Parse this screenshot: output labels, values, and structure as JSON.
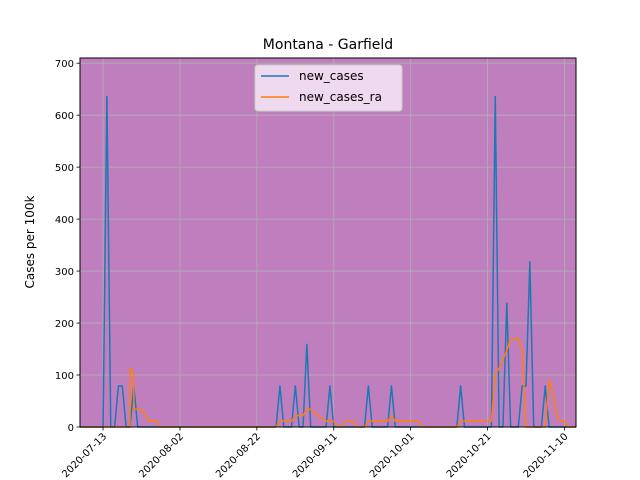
{
  "chart_data": {
    "type": "line",
    "title": "Montana - Garfield",
    "xlabel": "",
    "ylabel": "Cases per 100k",
    "ylim": [
      0,
      710
    ],
    "xlim": [
      "2020-07-07",
      "2020-11-13"
    ],
    "grid": true,
    "legend_position": "top-center",
    "background_color": "#bf7fbf",
    "x_ticks": [
      "2020-07-13",
      "2020-08-02",
      "2020-08-22",
      "2020-09-11",
      "2020-10-01",
      "2020-10-21",
      "2020-11-10"
    ],
    "y_ticks": [
      0,
      100,
      200,
      300,
      400,
      500,
      600,
      700
    ],
    "series": [
      {
        "name": "new_cases",
        "color": "#1f77b4",
        "points": [
          [
            "2020-07-07",
            0
          ],
          [
            "2020-07-13",
            0
          ],
          [
            "2020-07-14",
            636
          ],
          [
            "2020-07-15",
            0
          ],
          [
            "2020-07-16",
            0
          ],
          [
            "2020-07-17",
            79
          ],
          [
            "2020-07-18",
            79
          ],
          [
            "2020-07-19",
            0
          ],
          [
            "2020-07-20",
            0
          ],
          [
            "2020-07-21",
            79
          ],
          [
            "2020-07-22",
            0
          ],
          [
            "2020-08-27",
            0
          ],
          [
            "2020-08-28",
            79
          ],
          [
            "2020-08-29",
            0
          ],
          [
            "2020-08-31",
            0
          ],
          [
            "2020-09-01",
            79
          ],
          [
            "2020-09-02",
            0
          ],
          [
            "2020-09-03",
            0
          ],
          [
            "2020-09-04",
            159
          ],
          [
            "2020-09-05",
            0
          ],
          [
            "2020-09-09",
            0
          ],
          [
            "2020-09-10",
            79
          ],
          [
            "2020-09-11",
            0
          ],
          [
            "2020-09-19",
            0
          ],
          [
            "2020-09-20",
            79
          ],
          [
            "2020-09-21",
            0
          ],
          [
            "2020-09-25",
            0
          ],
          [
            "2020-09-26",
            79
          ],
          [
            "2020-09-27",
            0
          ],
          [
            "2020-10-13",
            0
          ],
          [
            "2020-10-14",
            79
          ],
          [
            "2020-10-15",
            0
          ],
          [
            "2020-10-22",
            0
          ],
          [
            "2020-10-23",
            636
          ],
          [
            "2020-10-24",
            0
          ],
          [
            "2020-10-25",
            0
          ],
          [
            "2020-10-26",
            238
          ],
          [
            "2020-10-27",
            0
          ],
          [
            "2020-10-29",
            0
          ],
          [
            "2020-10-30",
            79
          ],
          [
            "2020-10-31",
            79
          ],
          [
            "2020-11-01",
            318
          ],
          [
            "2020-11-02",
            0
          ],
          [
            "2020-11-04",
            0
          ],
          [
            "2020-11-05",
            79
          ],
          [
            "2020-11-06",
            0
          ],
          [
            "2020-11-13",
            0
          ]
        ]
      },
      {
        "name": "new_cases_ra",
        "color": "#ff7f0e",
        "points": [
          [
            "2020-07-07",
            0
          ],
          [
            "2020-07-20",
            0
          ],
          [
            "2020-07-20",
            113
          ],
          [
            "2020-07-21",
            102
          ],
          [
            "2020-07-21",
            34
          ],
          [
            "2020-07-23",
            34
          ],
          [
            "2020-07-24",
            22
          ],
          [
            "2020-07-25",
            11
          ],
          [
            "2020-07-27",
            11
          ],
          [
            "2020-07-28",
            0
          ],
          [
            "2020-08-27",
            0
          ],
          [
            "2020-08-28",
            11
          ],
          [
            "2020-08-31",
            11
          ],
          [
            "2020-09-01",
            22
          ],
          [
            "2020-09-03",
            22
          ],
          [
            "2020-09-04",
            34
          ],
          [
            "2020-09-05",
            34
          ],
          [
            "2020-09-07",
            22
          ],
          [
            "2020-09-09",
            11
          ],
          [
            "2020-09-11",
            11
          ],
          [
            "2020-09-12",
            0
          ],
          [
            "2020-09-13",
            0
          ],
          [
            "2020-09-14",
            11
          ],
          [
            "2020-09-16",
            11
          ],
          [
            "2020-09-17",
            0
          ],
          [
            "2020-09-19",
            0
          ],
          [
            "2020-09-20",
            11
          ],
          [
            "2020-09-25",
            11
          ],
          [
            "2020-09-26",
            22
          ],
          [
            "2020-09-27",
            11
          ],
          [
            "2020-10-03",
            11
          ],
          [
            "2020-10-04",
            0
          ],
          [
            "2020-10-13",
            0
          ],
          [
            "2020-10-14",
            11
          ],
          [
            "2020-10-22",
            11
          ],
          [
            "2020-10-23",
            102
          ],
          [
            "2020-10-24",
            113
          ],
          [
            "2020-10-26",
            147
          ],
          [
            "2020-10-27",
            170
          ],
          [
            "2020-10-29",
            170
          ],
          [
            "2020-10-30",
            147
          ],
          [
            "2020-10-31",
            0
          ],
          [
            "2020-11-05",
            0
          ],
          [
            "2020-11-06",
            90
          ],
          [
            "2020-11-07",
            68
          ],
          [
            "2020-11-08",
            20
          ],
          [
            "2020-11-09",
            11
          ],
          [
            "2020-11-10",
            11
          ],
          [
            "2020-11-11",
            0
          ],
          [
            "2020-11-13",
            0
          ]
        ]
      }
    ]
  }
}
